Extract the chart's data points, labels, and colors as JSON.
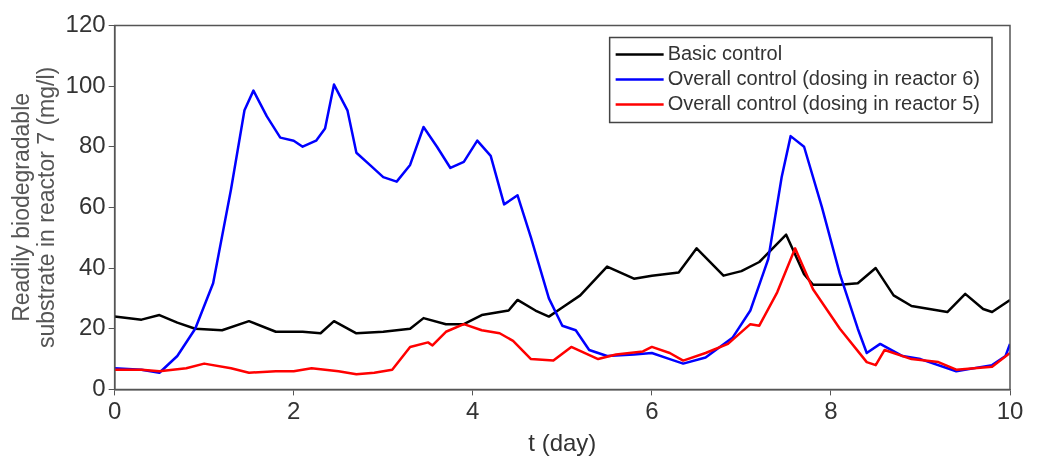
{
  "chart_data": {
    "type": "line",
    "xlabel": "t (day)",
    "ylabel": "Readily biodegradable\nsubstrate in reactor 7 (mg/l)",
    "xlim": [
      0,
      10
    ],
    "xticks": [
      0,
      2,
      4,
      6,
      8,
      10
    ],
    "ylim": [
      0,
      120
    ],
    "yticks": [
      0,
      20,
      40,
      60,
      80,
      100,
      120
    ],
    "grid": false,
    "legend": "top right",
    "marker": "none",
    "line_style": "solid",
    "series": [
      {
        "name": "Basic control",
        "color": "#000000",
        "x": [
          0,
          0.3,
          0.5,
          0.7,
          0.9,
          1.2,
          1.5,
          1.8,
          2.1,
          2.3,
          2.45,
          2.7,
          3.0,
          3.3,
          3.45,
          3.7,
          3.9,
          4.1,
          4.4,
          4.5,
          4.7,
          4.85,
          5.0,
          5.2,
          5.5,
          5.8,
          6.0,
          6.3,
          6.5,
          6.8,
          7.0,
          7.2,
          7.5,
          7.7,
          7.8,
          8.1,
          8.3,
          8.5,
          8.7,
          8.9,
          9.2,
          9.3,
          9.5,
          9.7,
          9.8,
          10
        ],
        "values": [
          24,
          23,
          24.5,
          22,
          20,
          19.5,
          22.5,
          19,
          19,
          18.5,
          22.5,
          18.5,
          19,
          20,
          23.5,
          21.5,
          21.5,
          24.5,
          26,
          29.5,
          26,
          24,
          27,
          31,
          40.5,
          36.5,
          37.5,
          38.5,
          46.5,
          37.5,
          39,
          42,
          51,
          38,
          34.5,
          34.5,
          35,
          40,
          31,
          27.5,
          26,
          25.5,
          31.5,
          26.5,
          25.5,
          29.5
        ]
      },
      {
        "name": "Overall control (dosing in reactor 6)",
        "color": "#0000ff",
        "x": [
          0,
          0.3,
          0.5,
          0.7,
          0.9,
          1.1,
          1.3,
          1.45,
          1.55,
          1.7,
          1.85,
          2.0,
          2.1,
          2.25,
          2.35,
          2.45,
          2.6,
          2.7,
          2.85,
          3.0,
          3.15,
          3.3,
          3.45,
          3.6,
          3.75,
          3.9,
          4.05,
          4.2,
          4.35,
          4.5,
          4.65,
          4.85,
          5.0,
          5.15,
          5.3,
          5.5,
          5.8,
          6.0,
          6.2,
          6.35,
          6.6,
          6.9,
          7.1,
          7.3,
          7.45,
          7.55,
          7.7,
          7.9,
          8.1,
          8.3,
          8.4,
          8.55,
          8.8,
          9.0,
          9.4,
          9.8,
          9.95,
          10
        ],
        "values": [
          7,
          6.5,
          5.5,
          11,
          20,
          35,
          66,
          92,
          98.5,
          90,
          83,
          82,
          80,
          82,
          86,
          100.5,
          92,
          78,
          74,
          70,
          68.5,
          74,
          86.5,
          80,
          73,
          75,
          82,
          77,
          61,
          64,
          50,
          30,
          21,
          19.5,
          13,
          11,
          11.5,
          12,
          10,
          8.5,
          10.5,
          17,
          26,
          43,
          70,
          83.5,
          80,
          60,
          38,
          20,
          12,
          15,
          11,
          10,
          6,
          8,
          11,
          15
        ]
      },
      {
        "name": "Overall control (dosing in reactor 5)",
        "color": "#ff0000",
        "x": [
          0,
          0.3,
          0.5,
          0.8,
          1.0,
          1.3,
          1.5,
          1.8,
          2.0,
          2.2,
          2.5,
          2.7,
          2.9,
          3.1,
          3.3,
          3.5,
          3.55,
          3.7,
          3.9,
          4.1,
          4.3,
          4.45,
          4.65,
          4.9,
          5.1,
          5.4,
          5.6,
          5.9,
          6.0,
          6.2,
          6.35,
          6.6,
          6.85,
          7.1,
          7.2,
          7.4,
          7.6,
          7.8,
          8.1,
          8.4,
          8.5,
          8.6,
          8.9,
          9.2,
          9.4,
          9.8,
          10
        ],
        "values": [
          6.5,
          6.5,
          6,
          7,
          8.5,
          7,
          5.5,
          6,
          6,
          7,
          6,
          5,
          5.5,
          6.5,
          14,
          15.5,
          14.5,
          19,
          21.5,
          19.5,
          18.5,
          16,
          10,
          9.5,
          14,
          10,
          11.5,
          12.5,
          14,
          12,
          9.5,
          12,
          15,
          21.5,
          21,
          32,
          46.5,
          33,
          20,
          9,
          8,
          13,
          10,
          9,
          6.5,
          7.5,
          12
        ]
      }
    ]
  }
}
